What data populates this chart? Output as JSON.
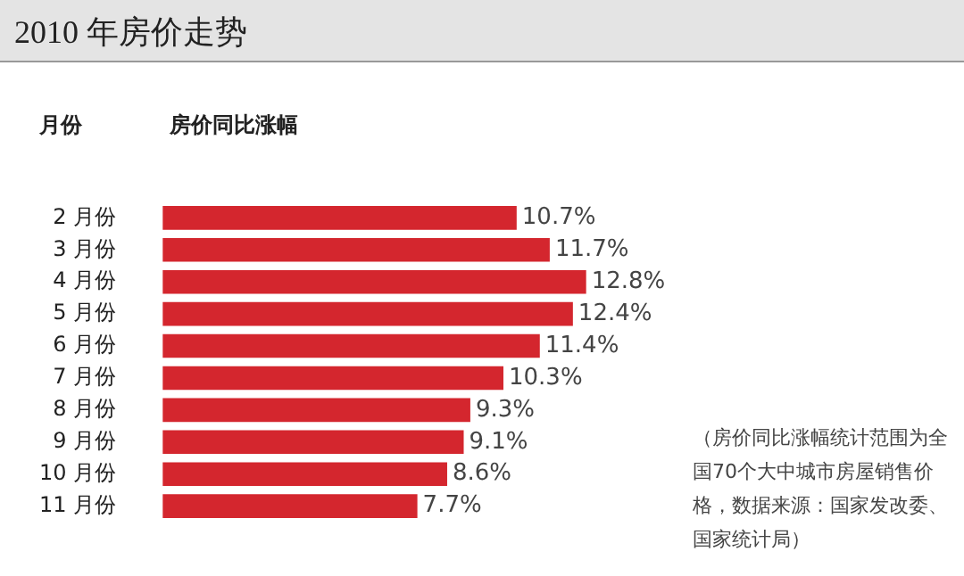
{
  "chart_data": {
    "type": "bar",
    "orientation": "horizontal",
    "title": "2010 年房价走势",
    "ylabel": "月份",
    "xlabel": "房价同比涨幅",
    "categories": [
      "2 月份",
      "3 月份",
      "4 月份",
      "5 月份",
      "6 月份",
      "7 月份",
      "8 月份",
      "9 月份",
      "10 月份",
      "11 月份"
    ],
    "values": [
      10.7,
      11.7,
      12.8,
      12.4,
      11.4,
      10.3,
      9.3,
      9.1,
      8.6,
      7.7
    ],
    "value_labels": [
      "10.7%",
      "11.7%",
      "12.8%",
      "12.4%",
      "11.4%",
      "10.3%",
      "9.3%",
      "9.1%",
      "8.6%",
      "7.7%"
    ],
    "color": "#d4262e",
    "legend": false,
    "annotations": [
      "（房价同比涨幅统计范围为全国70个大中城市房屋销售价格，数据来源：国家发改委、国家统计局）"
    ]
  }
}
